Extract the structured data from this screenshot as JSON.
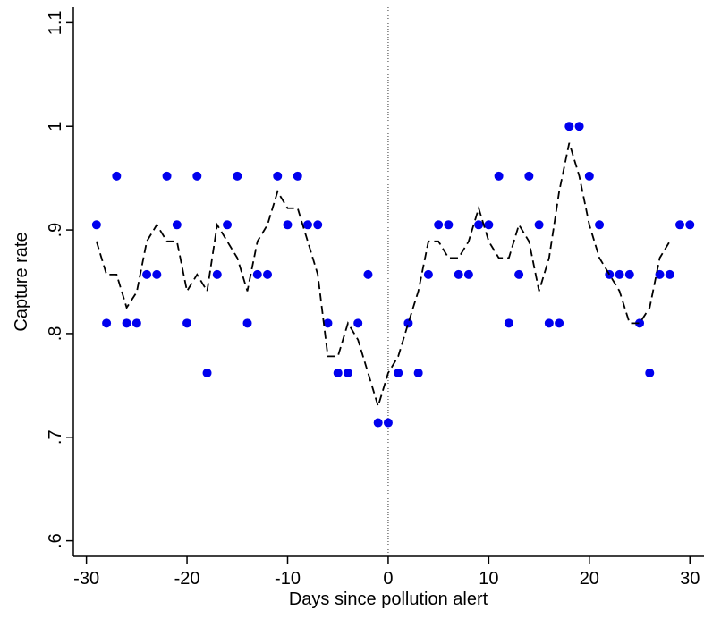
{
  "chart_data": {
    "type": "scatter",
    "xlabel": "Days since pollution alert",
    "ylabel": "Capture rate",
    "xlim": [
      -31.3,
      31.4
    ],
    "ylim": [
      0.585,
      1.115
    ],
    "xticks": [
      -30,
      -20,
      -10,
      0,
      10,
      20,
      30
    ],
    "yticks": [
      {
        "value": 0.6,
        "label": ".6"
      },
      {
        "value": 0.7,
        "label": ".7"
      },
      {
        "value": 0.8,
        "label": ".8"
      },
      {
        "value": 0.9,
        "label": ".9"
      },
      1,
      1.1
    ],
    "vline": 0,
    "series": [
      {
        "type": "scatter",
        "color": "#0000ee",
        "x": [
          -29,
          -28,
          -27,
          -26,
          -25,
          -24,
          -23,
          -22,
          -21,
          -20,
          -19,
          -18,
          -17,
          -16,
          -15,
          -14,
          -13,
          -12,
          -11,
          -10,
          -9,
          -8,
          -7,
          -6,
          -5,
          -4,
          -3,
          -2,
          -1,
          0,
          1,
          2,
          3,
          4,
          5,
          6,
          7,
          8,
          9,
          10,
          11,
          12,
          13,
          14,
          15,
          16,
          17,
          18,
          19,
          20,
          21,
          22,
          23,
          24,
          25,
          26,
          27,
          28,
          29,
          30
        ],
        "values": [
          0.905,
          0.81,
          0.952,
          0.81,
          0.81,
          0.857,
          0.857,
          0.952,
          0.905,
          0.81,
          0.952,
          0.762,
          0.857,
          0.905,
          0.952,
          0.81,
          0.857,
          0.857,
          0.952,
          0.905,
          0.952,
          0.905,
          0.905,
          0.81,
          0.762,
          0.762,
          0.81,
          0.857,
          0.714,
          0.714,
          0.762,
          0.81,
          0.762,
          0.857,
          0.905,
          0.905,
          0.857,
          0.857,
          0.905,
          0.905,
          0.952,
          0.81,
          0.857,
          0.952,
          0.905,
          0.81,
          0.81,
          1.0,
          1.0,
          0.952,
          0.905,
          0.857,
          0.857,
          0.857,
          0.81,
          0.762,
          0.857,
          0.857,
          0.905,
          0.905
        ]
      },
      {
        "type": "line",
        "color": "#000000",
        "x": [
          -29,
          -28,
          -27,
          -26,
          -25,
          -24,
          -23,
          -22,
          -21,
          -20,
          -19,
          -18,
          -17,
          -16,
          -15,
          -14,
          -13,
          -12,
          -11,
          -10,
          -9,
          -8,
          -7,
          -6,
          -5,
          -4,
          -3,
          -2,
          -1,
          0,
          1,
          2,
          3,
          4,
          5,
          6,
          7,
          8,
          9,
          10,
          11,
          12,
          13,
          14,
          15,
          16,
          17,
          18,
          19,
          20,
          21,
          22,
          23,
          24,
          25,
          26,
          27,
          28
        ],
        "values": [
          0.889,
          0.857,
          0.857,
          0.825,
          0.84,
          0.889,
          0.905,
          0.889,
          0.889,
          0.841,
          0.857,
          0.841,
          0.905,
          0.889,
          0.873,
          0.841,
          0.889,
          0.905,
          0.937,
          0.921,
          0.921,
          0.889,
          0.857,
          0.778,
          0.778,
          0.81,
          0.794,
          0.762,
          0.73,
          0.762,
          0.778,
          0.81,
          0.841,
          0.889,
          0.889,
          0.873,
          0.873,
          0.889,
          0.921,
          0.889,
          0.873,
          0.873,
          0.905,
          0.889,
          0.841,
          0.873,
          0.937,
          0.984,
          0.952,
          0.905,
          0.873,
          0.857,
          0.841,
          0.81,
          0.81,
          0.825,
          0.873,
          0.889
        ]
      }
    ]
  }
}
